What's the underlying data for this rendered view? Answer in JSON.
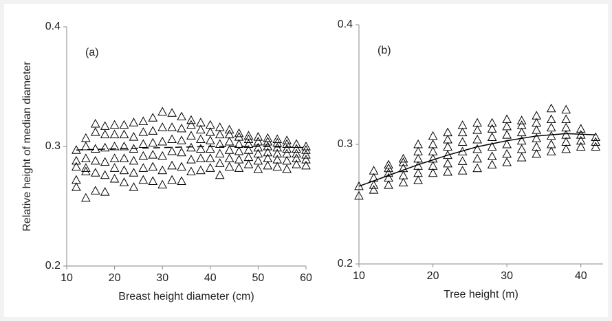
{
  "chart_data": [
    {
      "type": "scatter",
      "annotation": "(a)",
      "x_label": "Breast height diameter (cm)",
      "y_label": "Relative height of median diameter",
      "xlim": [
        10,
        60
      ],
      "ylim": [
        0.2,
        0.4
      ],
      "xticks": [
        10,
        20,
        30,
        40,
        50,
        60
      ],
      "yticks": [
        0.2,
        0.3,
        0.4
      ],
      "series": [
        {
          "mark": "triangle",
          "color": "#000000",
          "x": [
            12,
            12,
            12,
            12,
            12,
            14,
            14,
            14,
            14,
            14,
            14,
            16,
            16,
            16,
            16,
            16,
            16,
            18,
            18,
            18,
            18,
            18,
            18,
            20,
            20,
            20,
            20,
            20,
            20,
            22,
            22,
            22,
            22,
            22,
            22,
            24,
            24,
            24,
            24,
            24,
            24,
            26,
            26,
            26,
            26,
            26,
            26,
            28,
            28,
            28,
            28,
            28,
            28,
            30,
            30,
            30,
            30,
            30,
            30,
            32,
            32,
            32,
            32,
            32,
            32,
            34,
            34,
            34,
            34,
            34,
            34,
            36,
            36,
            36,
            36,
            36,
            36,
            38,
            38,
            38,
            38,
            38,
            38,
            40,
            40,
            40,
            40,
            40,
            40,
            42,
            42,
            42,
            42,
            42,
            42,
            44,
            44,
            44,
            44,
            44,
            44,
            46,
            46,
            46,
            46,
            46,
            46,
            48,
            48,
            48,
            48,
            48,
            48,
            50,
            50,
            50,
            50,
            50,
            50,
            52,
            52,
            52,
            52,
            52,
            52,
            54,
            54,
            54,
            54,
            54,
            54,
            56,
            56,
            56,
            56,
            56,
            56,
            58,
            58,
            58,
            58,
            58,
            60,
            60,
            60,
            60,
            60
          ],
          "values": [
            0.266,
            0.272,
            0.283,
            0.288,
            0.297,
            0.257,
            0.279,
            0.282,
            0.29,
            0.3,
            0.307,
            0.263,
            0.278,
            0.288,
            0.298,
            0.312,
            0.319,
            0.262,
            0.276,
            0.287,
            0.299,
            0.31,
            0.317,
            0.273,
            0.282,
            0.29,
            0.3,
            0.31,
            0.318,
            0.27,
            0.28,
            0.29,
            0.3,
            0.31,
            0.318,
            0.266,
            0.278,
            0.288,
            0.298,
            0.308,
            0.32,
            0.272,
            0.282,
            0.292,
            0.302,
            0.312,
            0.321,
            0.271,
            0.283,
            0.293,
            0.303,
            0.313,
            0.324,
            0.268,
            0.28,
            0.292,
            0.304,
            0.316,
            0.329,
            0.272,
            0.284,
            0.296,
            0.306,
            0.316,
            0.328,
            0.271,
            0.283,
            0.295,
            0.305,
            0.315,
            0.325,
            0.279,
            0.289,
            0.299,
            0.309,
            0.318,
            0.322,
            0.28,
            0.29,
            0.298,
            0.306,
            0.314,
            0.32,
            0.282,
            0.29,
            0.298,
            0.305,
            0.312,
            0.318,
            0.276,
            0.286,
            0.294,
            0.302,
            0.31,
            0.316,
            0.283,
            0.29,
            0.297,
            0.304,
            0.31,
            0.314,
            0.282,
            0.289,
            0.296,
            0.302,
            0.308,
            0.311,
            0.285,
            0.291,
            0.297,
            0.302,
            0.306,
            0.309,
            0.281,
            0.288,
            0.294,
            0.299,
            0.304,
            0.308,
            0.284,
            0.29,
            0.295,
            0.3,
            0.304,
            0.307,
            0.283,
            0.289,
            0.294,
            0.299,
            0.303,
            0.306,
            0.281,
            0.288,
            0.294,
            0.298,
            0.302,
            0.305,
            0.285,
            0.29,
            0.294,
            0.298,
            0.302,
            0.284,
            0.289,
            0.293,
            0.297,
            0.3
          ]
        },
        {
          "mark": "line",
          "dashed": true,
          "color": "#000000",
          "x": [
            12,
            20,
            30,
            40,
            50,
            60
          ],
          "values": [
            0.297,
            0.298,
            0.299,
            0.3,
            0.3,
            0.299
          ]
        }
      ]
    },
    {
      "type": "scatter",
      "annotation": "(b)",
      "x_label": "Tree height (m)",
      "xlim": [
        10,
        43
      ],
      "ylim": [
        0.2,
        0.4
      ],
      "xticks": [
        10,
        20,
        30,
        40
      ],
      "yticks": [
        0.2,
        0.3,
        0.4
      ],
      "series": [
        {
          "mark": "triangle",
          "color": "#000000",
          "x": [
            10,
            10,
            12,
            12,
            12,
            12,
            14,
            14,
            14,
            14,
            14,
            16,
            16,
            16,
            16,
            16,
            18,
            18,
            18,
            18,
            18,
            18,
            20,
            20,
            20,
            20,
            20,
            20,
            22,
            22,
            22,
            22,
            22,
            22,
            24,
            24,
            24,
            24,
            24,
            24,
            26,
            26,
            26,
            26,
            26,
            26,
            28,
            28,
            28,
            28,
            28,
            28,
            30,
            30,
            30,
            30,
            30,
            30,
            32,
            32,
            32,
            32,
            32,
            32,
            34,
            34,
            34,
            34,
            34,
            34,
            36,
            36,
            36,
            36,
            36,
            36,
            38,
            38,
            38,
            38,
            38,
            38,
            40,
            40,
            40,
            40,
            42,
            42,
            42
          ],
          "values": [
            0.257,
            0.265,
            0.262,
            0.266,
            0.272,
            0.278,
            0.266,
            0.272,
            0.276,
            0.28,
            0.283,
            0.268,
            0.274,
            0.28,
            0.285,
            0.288,
            0.27,
            0.276,
            0.282,
            0.288,
            0.294,
            0.3,
            0.276,
            0.282,
            0.288,
            0.294,
            0.3,
            0.307,
            0.277,
            0.284,
            0.291,
            0.298,
            0.304,
            0.31,
            0.278,
            0.286,
            0.294,
            0.302,
            0.31,
            0.316,
            0.28,
            0.288,
            0.296,
            0.304,
            0.312,
            0.318,
            0.283,
            0.29,
            0.298,
            0.306,
            0.313,
            0.318,
            0.285,
            0.292,
            0.3,
            0.308,
            0.315,
            0.321,
            0.289,
            0.296,
            0.303,
            0.31,
            0.316,
            0.32,
            0.292,
            0.298,
            0.305,
            0.312,
            0.318,
            0.324,
            0.294,
            0.3,
            0.307,
            0.314,
            0.321,
            0.33,
            0.296,
            0.302,
            0.308,
            0.314,
            0.321,
            0.329,
            0.298,
            0.303,
            0.308,
            0.313,
            0.298,
            0.302,
            0.306
          ]
        },
        {
          "mark": "line",
          "dashed": false,
          "color": "#000000",
          "x": [
            10,
            14,
            18,
            22,
            26,
            30,
            34,
            38,
            42
          ],
          "values": [
            0.265,
            0.274,
            0.283,
            0.291,
            0.298,
            0.303,
            0.307,
            0.309,
            0.308
          ]
        }
      ]
    }
  ]
}
